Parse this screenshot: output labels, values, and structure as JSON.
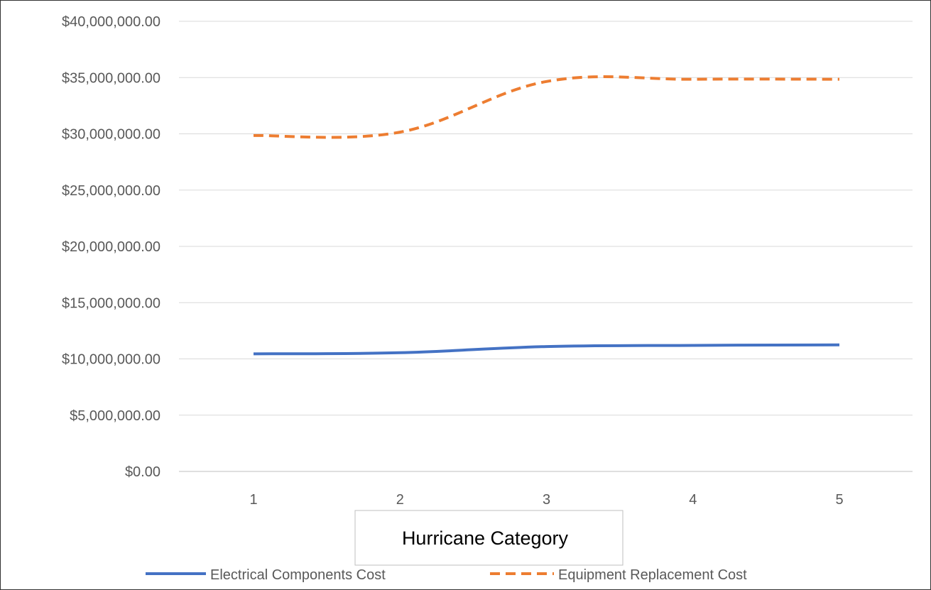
{
  "chart_data": {
    "type": "line",
    "x": [
      1,
      2,
      3,
      4,
      5
    ],
    "xlabel": "Hurricane Category",
    "ylabel": "",
    "ylim": [
      0,
      40000000
    ],
    "ytick_step": 5000000,
    "yticks": [
      "$0.00",
      "$5,000,000.00",
      "$10,000,000.00",
      "$15,000,000.00",
      "$20,000,000.00",
      "$25,000,000.00",
      "$30,000,000.00",
      "$35,000,000.00",
      "$40,000,000.00"
    ],
    "xticks": [
      "1",
      "2",
      "3",
      "4",
      "5"
    ],
    "grid": true,
    "legend_position": "bottom",
    "series": [
      {
        "name": "Electrical Components Cost",
        "values": [
          10450000,
          10550000,
          11100000,
          11200000,
          11250000
        ],
        "color": "#4472C4",
        "style": "solid"
      },
      {
        "name": "Equipment Replacement Cost",
        "values": [
          29850000,
          30150000,
          34650000,
          34850000,
          34850000
        ],
        "color": "#ED7D31",
        "style": "dashed"
      }
    ]
  }
}
